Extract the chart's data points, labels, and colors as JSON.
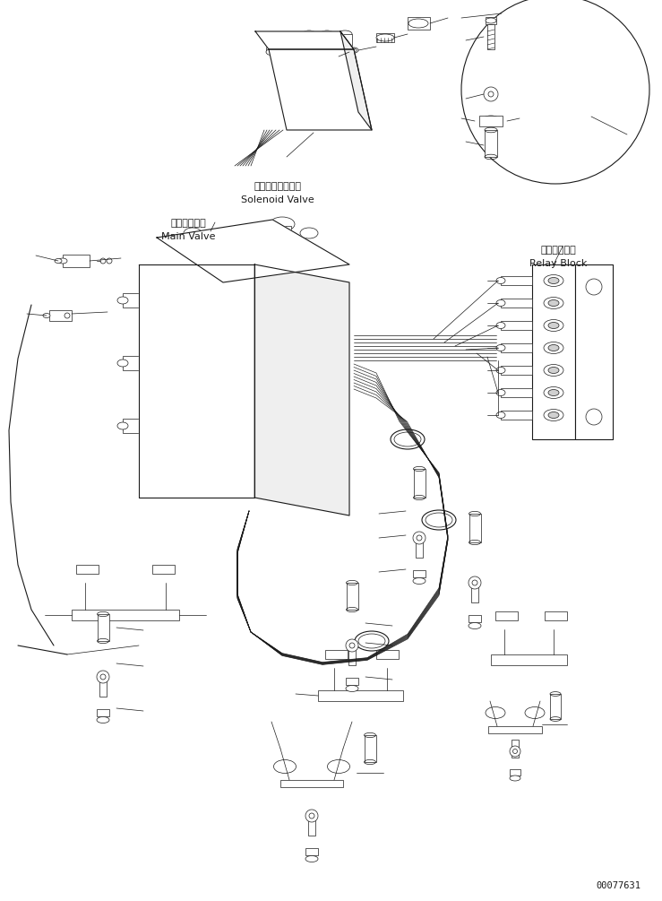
{
  "bg_color": "#ffffff",
  "line_color": "#1a1a1a",
  "fig_width": 7.39,
  "fig_height": 10.05,
  "dpi": 100,
  "part_number": "00077631",
  "labels": {
    "solenoid_jp": "ソレノイドバルブ",
    "solenoid_en": "Solenoid Valve",
    "main_valve_jp": "メインバルブ",
    "main_valve_en": "Main Valve",
    "relay_jp": "中継ブロック",
    "relay_en": "Relay Block"
  }
}
